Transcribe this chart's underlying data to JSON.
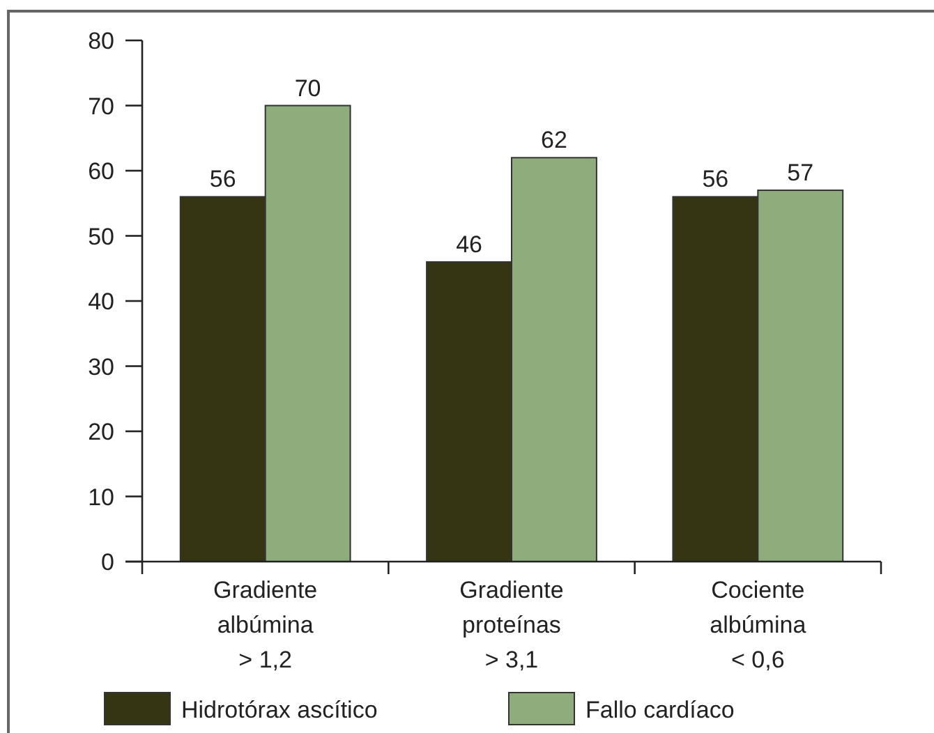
{
  "chart_data": {
    "type": "bar",
    "categories": [
      "Gradiente\nalbúmina\n> 1,2",
      "Gradiente\nproteínas\n> 3,1",
      "Cociente\nalbúmina\n< 0,6"
    ],
    "series": [
      {
        "name": "Hidrotórax ascítico",
        "color": "#363513",
        "values": [
          56,
          46,
          56
        ]
      },
      {
        "name": "Fallo cardíaco",
        "color": "#8eac7c",
        "values": [
          70,
          62,
          57
        ]
      }
    ],
    "ylim": [
      0,
      80
    ],
    "yticks": [
      0,
      10,
      20,
      30,
      40,
      50,
      60,
      70,
      80
    ],
    "grid": false,
    "legend": "bottom",
    "data_labels": true
  }
}
